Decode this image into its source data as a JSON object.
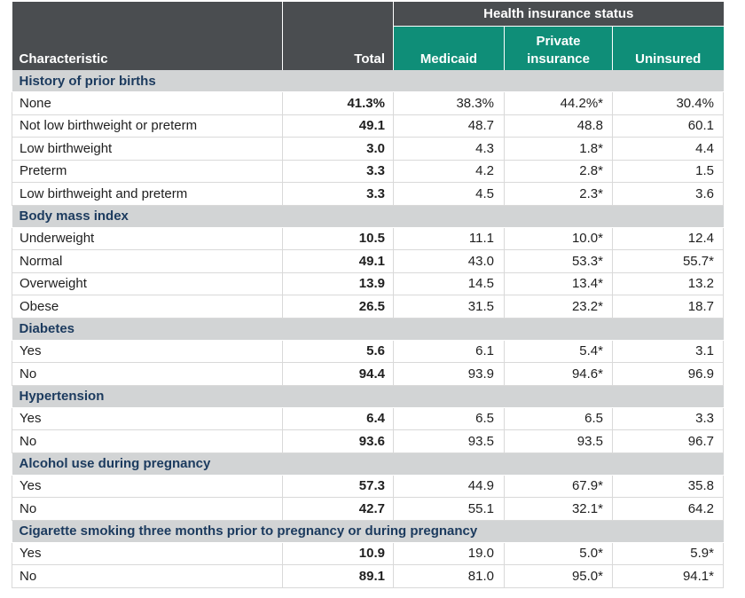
{
  "header": {
    "group_label": "Health insurance status",
    "columns": [
      "Characteristic",
      "Total",
      "Medicaid",
      "Private insurance",
      "Uninsured"
    ]
  },
  "sections": [
    {
      "title": "History of prior births",
      "rows": [
        {
          "label": "None",
          "total": "41.3%",
          "medicaid": "38.3%",
          "private": "44.2%*",
          "uninsured": "30.4%"
        },
        {
          "label": "Not low birthweight or preterm",
          "total": "49.1",
          "medicaid": "48.7",
          "private": "48.8",
          "uninsured": "60.1"
        },
        {
          "label": "Low birthweight",
          "total": "3.0",
          "medicaid": "4.3",
          "private": "1.8*",
          "uninsured": "4.4"
        },
        {
          "label": "Preterm",
          "total": "3.3",
          "medicaid": "4.2",
          "private": "2.8*",
          "uninsured": "1.5"
        },
        {
          "label": "Low birthweight and preterm",
          "total": "3.3",
          "medicaid": "4.5",
          "private": "2.3*",
          "uninsured": "3.6"
        }
      ]
    },
    {
      "title": "Body mass index",
      "rows": [
        {
          "label": "Underweight",
          "total": "10.5",
          "medicaid": "11.1",
          "private": "10.0*",
          "uninsured": "12.4"
        },
        {
          "label": "Normal",
          "total": "49.1",
          "medicaid": "43.0",
          "private": "53.3*",
          "uninsured": "55.7*"
        },
        {
          "label": "Overweight",
          "total": "13.9",
          "medicaid": "14.5",
          "private": "13.4*",
          "uninsured": "13.2"
        },
        {
          "label": "Obese",
          "total": "26.5",
          "medicaid": "31.5",
          "private": "23.2*",
          "uninsured": "18.7"
        }
      ]
    },
    {
      "title": "Diabetes",
      "rows": [
        {
          "label": "Yes",
          "total": "5.6",
          "medicaid": "6.1",
          "private": "5.4*",
          "uninsured": "3.1"
        },
        {
          "label": "No",
          "total": "94.4",
          "medicaid": "93.9",
          "private": "94.6*",
          "uninsured": "96.9"
        }
      ]
    },
    {
      "title": "Hypertension",
      "rows": [
        {
          "label": "Yes",
          "total": "6.4",
          "medicaid": "6.5",
          "private": "6.5",
          "uninsured": "3.3"
        },
        {
          "label": "No",
          "total": "93.6",
          "medicaid": "93.5",
          "private": "93.5",
          "uninsured": "96.7"
        }
      ]
    },
    {
      "title": "Alcohol use during pregnancy",
      "rows": [
        {
          "label": "Yes",
          "total": "57.3",
          "medicaid": "44.9",
          "private": "67.9*",
          "uninsured": "35.8"
        },
        {
          "label": "No",
          "total": "42.7",
          "medicaid": "55.1",
          "private": "32.1*",
          "uninsured": "64.2"
        }
      ]
    },
    {
      "title": "Cigarette smoking three months prior to pregnancy or during pregnancy",
      "rows": [
        {
          "label": "Yes",
          "total": "10.9",
          "medicaid": "19.0",
          "private": "5.0*",
          "uninsured": "5.9*"
        },
        {
          "label": "No",
          "total": "89.1",
          "medicaid": "81.0",
          "private": "95.0*",
          "uninsured": "94.1*"
        }
      ]
    }
  ],
  "colors": {
    "header_dark": "#4a4d50",
    "header_teal": "#0f8e78",
    "section_bg": "#d2d4d5",
    "section_text": "#1b3a5e"
  }
}
